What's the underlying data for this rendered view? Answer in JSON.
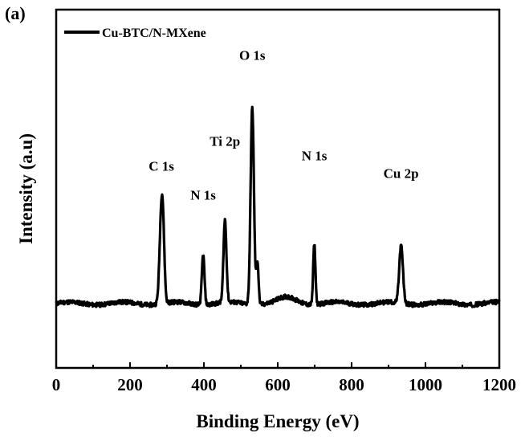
{
  "panel_label": "(a)",
  "chart_data": {
    "type": "line",
    "xlabel": "Binding Energy (eV)",
    "ylabel": "Intensity (a.u)",
    "xlim": [
      0,
      1200
    ],
    "ylim": [
      0,
      1
    ],
    "xticks": [
      0,
      200,
      400,
      600,
      800,
      1000,
      1200
    ],
    "grid": false,
    "legend": {
      "placement": "top-left"
    },
    "series": [
      {
        "name": "Cu-BTC/N-MXene",
        "color": "#000000",
        "baseline": 0.18,
        "peaks": [
          {
            "x": 285,
            "height": 0.25,
            "width": 5
          },
          {
            "x": 290,
            "height": 0.1,
            "width": 4
          },
          {
            "x": 398,
            "height": 0.14,
            "width": 3.5
          },
          {
            "x": 457,
            "height": 0.23,
            "width": 4
          },
          {
            "x": 531,
            "height": 0.55,
            "width": 4.5
          },
          {
            "x": 545,
            "height": 0.12,
            "width": 3
          },
          {
            "x": 626,
            "height": 0.015,
            "width": 25
          },
          {
            "x": 699,
            "height": 0.17,
            "width": 3
          },
          {
            "x": 934,
            "height": 0.16,
            "width": 5
          }
        ]
      }
    ],
    "annotations": [
      {
        "text": "C 1s",
        "x": 285,
        "y": 0.55
      },
      {
        "text": "N 1s",
        "x": 398,
        "y": 0.47
      },
      {
        "text": "Ti 2p",
        "x": 457,
        "y": 0.62
      },
      {
        "text": "O 1s",
        "x": 531,
        "y": 0.86
      },
      {
        "text": "N 1s",
        "x": 699,
        "y": 0.58
      },
      {
        "text": "Cu 2p",
        "x": 934,
        "y": 0.53
      }
    ]
  }
}
